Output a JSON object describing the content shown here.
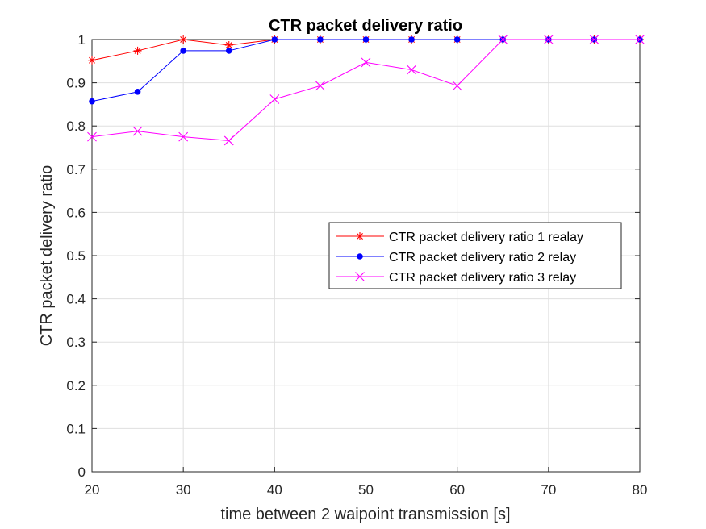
{
  "chart_data": {
    "type": "line",
    "title": "CTR packet delivery ratio",
    "xlabel": "time between 2 waipoint transmission [s]",
    "ylabel": "CTR packet delivery ratio",
    "xlim": [
      20,
      80
    ],
    "ylim": [
      0,
      1
    ],
    "xticks": [
      20,
      30,
      40,
      50,
      60,
      70,
      80
    ],
    "yticks": [
      0,
      0.1,
      0.2,
      0.3,
      0.4,
      0.5,
      0.6,
      0.7,
      0.8,
      0.9,
      1
    ],
    "ytick_labels": [
      "0",
      "0.1",
      "0.2",
      "0.3",
      "0.4",
      "0.5",
      "0.6",
      "0.7",
      "0.8",
      "0.9",
      "1"
    ],
    "grid": true,
    "legend_position": "middle-right",
    "x": [
      20,
      25,
      30,
      35,
      40,
      45,
      50,
      55,
      60,
      65,
      70,
      75,
      80
    ],
    "series": [
      {
        "name": "CTR packet delivery ratio 1 realay",
        "color": "#ff0000",
        "marker": "asterisk",
        "values": [
          0.952,
          0.974,
          1.0,
          0.987,
          1.0,
          1.0,
          1.0,
          1.0,
          1.0,
          1.0,
          1.0,
          1.0,
          1.0
        ]
      },
      {
        "name": "CTR packet delivery ratio 2 relay",
        "color": "#0000ff",
        "marker": "dot",
        "values": [
          0.857,
          0.879,
          0.974,
          0.974,
          1.0,
          1.0,
          1.0,
          1.0,
          1.0,
          1.0,
          1.0,
          1.0,
          1.0
        ]
      },
      {
        "name": "CTR packet delivery ratio 3 relay",
        "color": "#ff00ff",
        "marker": "x",
        "values": [
          0.775,
          0.788,
          0.775,
          0.766,
          0.862,
          0.893,
          0.947,
          0.93,
          0.893,
          1.0,
          1.0,
          1.0,
          1.0
        ]
      }
    ]
  }
}
